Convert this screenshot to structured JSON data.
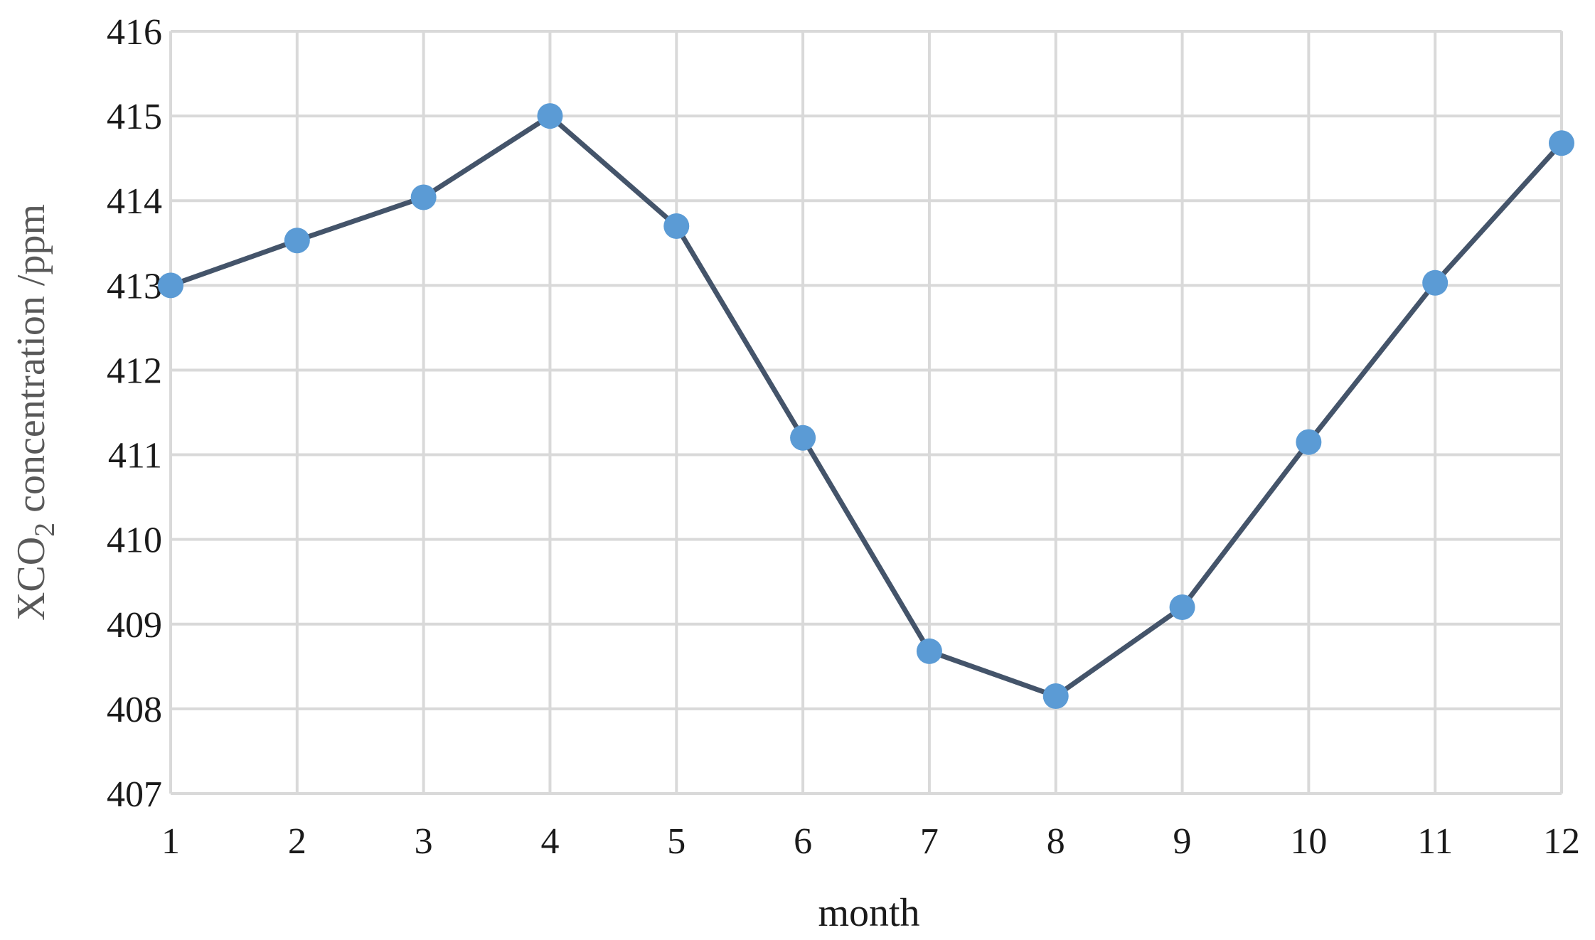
{
  "chart_data": {
    "type": "line",
    "title": "",
    "xlabel": "month",
    "ylabel": {
      "prefix": "XCO",
      "subscript": "2",
      "suffix": " concentration /ppm"
    },
    "x": [
      1,
      2,
      3,
      4,
      5,
      6,
      7,
      8,
      9,
      10,
      11,
      12
    ],
    "xtick_labels": [
      "1",
      "2",
      "3",
      "4",
      "5",
      "6",
      "7",
      "8",
      "9",
      "10",
      "11",
      "12"
    ],
    "ylim": [
      407,
      416
    ],
    "yticks": [
      407,
      408,
      409,
      410,
      411,
      412,
      413,
      414,
      415,
      416
    ],
    "ytick_labels": [
      "407",
      "408",
      "409",
      "410",
      "411",
      "412",
      "413",
      "414",
      "415",
      "416"
    ],
    "grid": true,
    "legend": "none",
    "series": [
      {
        "values": [
          413.0,
          413.53,
          414.04,
          415.0,
          413.7,
          411.2,
          408.68,
          408.15,
          409.2,
          411.15,
          413.03,
          414.68
        ],
        "line_color": "#44546a",
        "marker_color": "#5b9bd5"
      }
    ]
  }
}
